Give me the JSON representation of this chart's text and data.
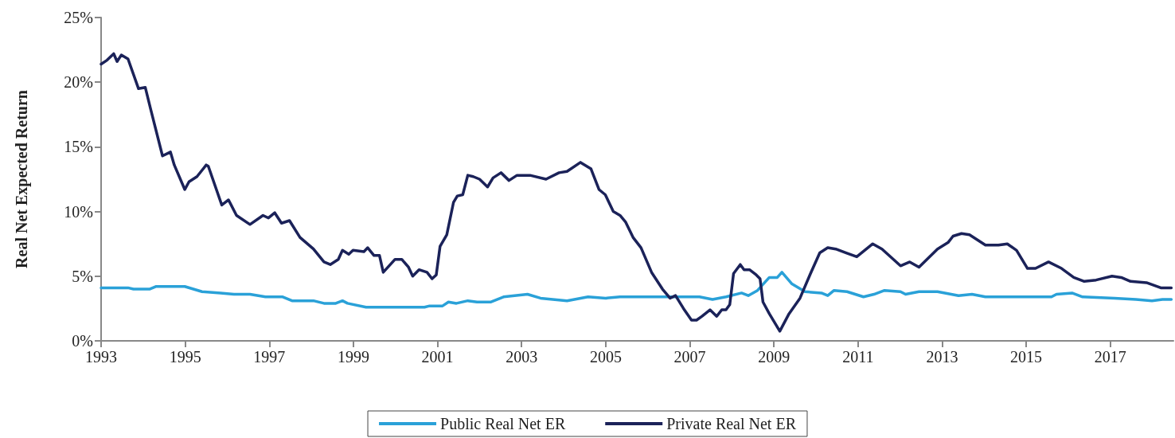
{
  "chart_data": {
    "type": "line",
    "ylabel": "Real Net Expected Return",
    "xlim": [
      1993,
      2018.5
    ],
    "xticks": [
      1993,
      1995,
      1997,
      1999,
      2001,
      2003,
      2005,
      2007,
      2009,
      2011,
      2013,
      2015,
      2017
    ],
    "ylim": [
      0,
      25
    ],
    "yticks": [
      {
        "value": 0,
        "label": "0%"
      },
      {
        "value": 5,
        "label": "5%"
      },
      {
        "value": 10,
        "label": "10%"
      },
      {
        "value": 15,
        "label": "15%"
      },
      {
        "value": 20,
        "label": "20%"
      },
      {
        "value": 25,
        "label": "25%"
      }
    ],
    "grid": false,
    "legend": "bottom",
    "marker": "none",
    "line_style": "solid",
    "series": [
      {
        "name": "Public Real Net ER",
        "color": "#2aa1d8",
        "x": [
          1993,
          1993.64,
          1993.77,
          1994.15,
          1994.3,
          1994.99,
          1995.4,
          1995.84,
          1996.16,
          1996.54,
          1996.91,
          1997.32,
          1997.54,
          1998.05,
          1998.3,
          1998.58,
          1998.74,
          1998.86,
          1999.3,
          2000.05,
          2000.69,
          2000.81,
          2001.12,
          2001.26,
          2001.45,
          2001.72,
          2001.94,
          2002.26,
          2002.57,
          2003.14,
          2003.45,
          2004.08,
          2004.58,
          2005.0,
          2005.34,
          2007.23,
          2007.54,
          2007.86,
          2008.23,
          2008.39,
          2008.61,
          2008.89,
          2009.08,
          2009.19,
          2009.43,
          2009.74,
          2010.13,
          2010.28,
          2010.43,
          2010.74,
          2011.13,
          2011.38,
          2011.63,
          2012.01,
          2012.13,
          2012.45,
          2012.89,
          2013.39,
          2013.71,
          2014.03,
          2014.85,
          2015.6,
          2015.72,
          2016.09,
          2016.34,
          2017.1,
          2017.61,
          2017.99,
          2018.24,
          2018.45
        ],
        "values": [
          4.1,
          4.1,
          4.0,
          4.0,
          4.2,
          4.2,
          3.8,
          3.7,
          3.6,
          3.6,
          3.4,
          3.4,
          3.1,
          3.1,
          2.9,
          2.9,
          3.1,
          2.9,
          2.6,
          2.6,
          2.6,
          2.7,
          2.7,
          3.0,
          2.9,
          3.1,
          3.0,
          3.0,
          3.4,
          3.6,
          3.3,
          3.1,
          3.4,
          3.3,
          3.4,
          3.4,
          3.2,
          3.4,
          3.7,
          3.5,
          3.9,
          4.9,
          4.9,
          5.3,
          4.4,
          3.8,
          3.7,
          3.5,
          3.9,
          3.8,
          3.4,
          3.6,
          3.9,
          3.8,
          3.6,
          3.8,
          3.8,
          3.5,
          3.6,
          3.4,
          3.4,
          3.4,
          3.6,
          3.7,
          3.4,
          3.3,
          3.2,
          3.1,
          3.2,
          3.2
        ]
      },
      {
        "name": "Private Real Net ER",
        "color": "#1b2259",
        "x": [
          1993,
          1993.14,
          1993.3,
          1993.38,
          1993.48,
          1993.64,
          1993.89,
          1994.05,
          1994.18,
          1994.46,
          1994.65,
          1994.74,
          1994.99,
          1995.09,
          1995.28,
          1995.5,
          1995.55,
          1995.87,
          1996.03,
          1996.22,
          1996.54,
          1996.85,
          1996.98,
          1997.13,
          1997.29,
          1997.48,
          1997.73,
          1998.05,
          1998.3,
          1998.45,
          1998.64,
          1998.74,
          1998.89,
          1998.99,
          1999.25,
          1999.34,
          1999.49,
          1999.62,
          1999.71,
          1999.99,
          2000.15,
          2000.31,
          2000.41,
          2000.56,
          2000.75,
          2000.87,
          2000.97,
          2001.06,
          2001.22,
          2001.38,
          2001.47,
          2001.6,
          2001.72,
          2001.85,
          2002.0,
          2002.19,
          2002.32,
          2002.51,
          2002.7,
          2002.89,
          2003.2,
          2003.58,
          2003.89,
          2004.08,
          2004.4,
          2004.65,
          2004.84,
          2004.99,
          2005.18,
          2005.34,
          2005.47,
          2005.65,
          2005.84,
          2006.09,
          2006.35,
          2006.53,
          2006.66,
          2006.85,
          2007.04,
          2007.16,
          2007.29,
          2007.48,
          2007.64,
          2007.76,
          2007.86,
          2007.95,
          2008.04,
          2008.2,
          2008.29,
          2008.42,
          2008.58,
          2008.67,
          2008.74,
          2008.89,
          2009.14,
          2009.36,
          2009.62,
          2009.87,
          2010.09,
          2010.28,
          2010.47,
          2010.72,
          2010.97,
          2011.35,
          2011.57,
          2012.01,
          2012.23,
          2012.45,
          2012.89,
          2013.14,
          2013.26,
          2013.46,
          2013.65,
          2014.03,
          2014.34,
          2014.55,
          2014.77,
          2015.03,
          2015.22,
          2015.53,
          2015.84,
          2016.13,
          2016.38,
          2016.66,
          2017.04,
          2017.26,
          2017.48,
          2017.86,
          2018.2,
          2018.45
        ],
        "values": [
          21.4,
          21.7,
          22.2,
          21.6,
          22.1,
          21.8,
          19.5,
          19.6,
          17.9,
          14.3,
          14.6,
          13.6,
          11.7,
          12.3,
          12.7,
          13.6,
          13.5,
          10.5,
          10.9,
          9.7,
          9.0,
          9.7,
          9.5,
          9.9,
          9.1,
          9.3,
          8.0,
          7.1,
          6.1,
          5.9,
          6.3,
          7.0,
          6.7,
          7.0,
          6.9,
          7.2,
          6.6,
          6.6,
          5.3,
          6.3,
          6.3,
          5.7,
          5.0,
          5.5,
          5.3,
          4.8,
          5.1,
          7.3,
          8.2,
          10.7,
          11.2,
          11.3,
          12.8,
          12.7,
          12.5,
          11.9,
          12.6,
          13.0,
          12.4,
          12.8,
          12.8,
          12.5,
          13.0,
          13.1,
          13.8,
          13.3,
          11.7,
          11.3,
          10.0,
          9.7,
          9.2,
          8.0,
          7.2,
          5.3,
          4.0,
          3.3,
          3.5,
          2.5,
          1.6,
          1.6,
          1.9,
          2.4,
          1.9,
          2.4,
          2.4,
          2.8,
          5.2,
          5.9,
          5.5,
          5.5,
          5.1,
          4.8,
          3.0,
          2.1,
          0.75,
          2.1,
          3.3,
          5.2,
          6.8,
          7.2,
          7.1,
          6.8,
          6.5,
          7.5,
          7.1,
          5.8,
          6.1,
          5.7,
          7.1,
          7.6,
          8.1,
          8.3,
          8.2,
          7.4,
          7.4,
          7.5,
          7.0,
          5.6,
          5.6,
          6.1,
          5.6,
          4.9,
          4.6,
          4.7,
          5.0,
          4.9,
          4.6,
          4.5,
          4.1,
          4.1
        ]
      }
    ]
  }
}
